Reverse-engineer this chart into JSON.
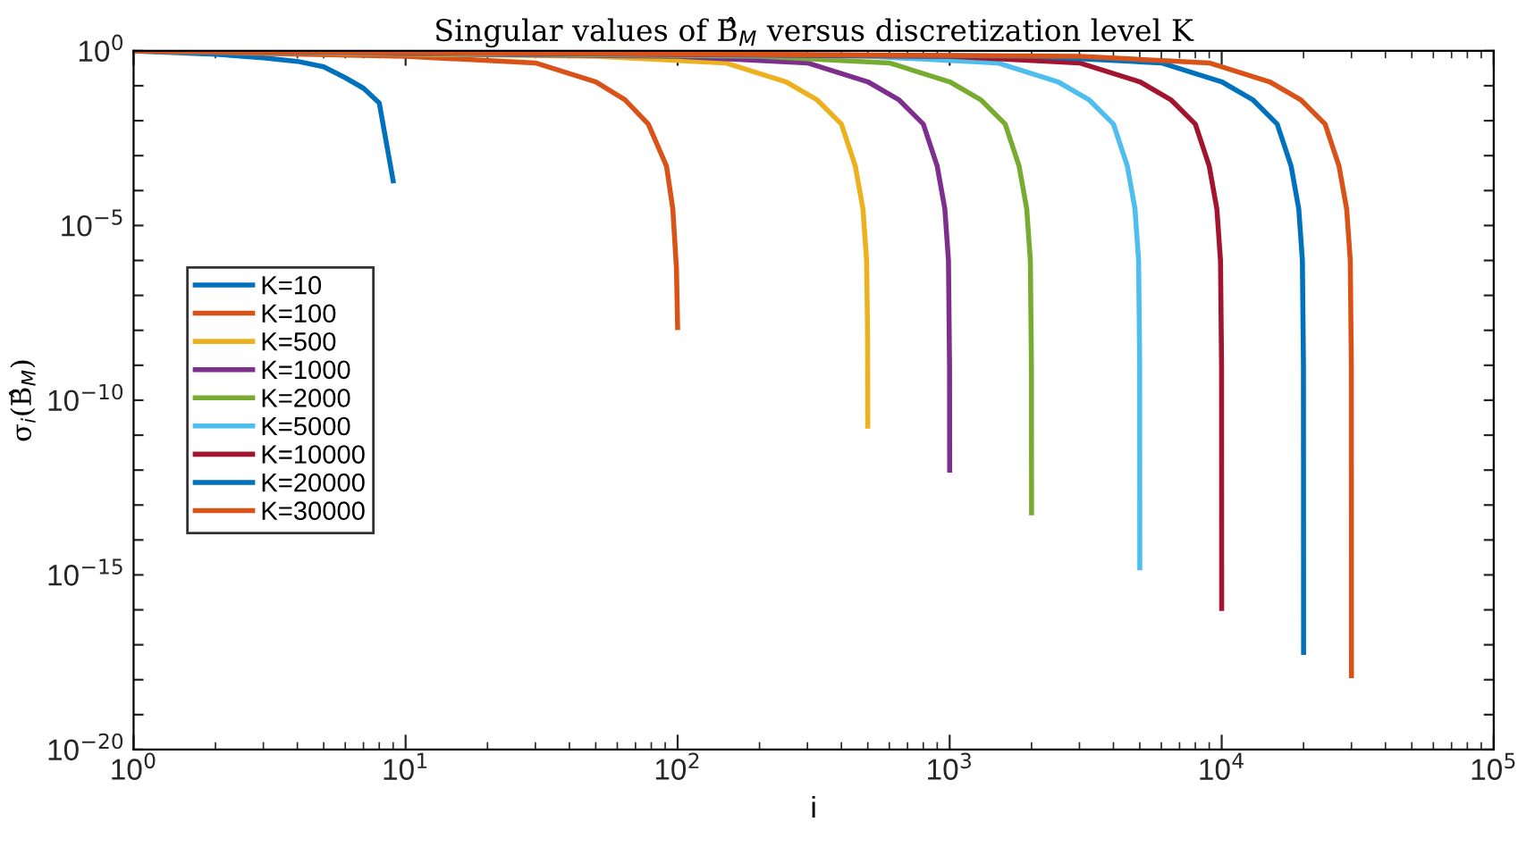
{
  "chart_data": {
    "type": "line",
    "title": "Singular values of B̂$_{M}$ versus discretization level K",
    "xlabel": "i",
    "ylabel": "σ$_{i}$(B̂$_{M}$)",
    "log": "xy",
    "grid": false,
    "legend": "left",
    "marker": "none",
    "line_style": "solid",
    "xlim": [
      1,
      100000
    ],
    "ylim": [
      1e-20,
      1
    ],
    "xticks": [
      {
        "value": 1,
        "label": "10$^{0}$"
      },
      {
        "value": 10,
        "label": "10$^{1}$"
      },
      {
        "value": 100,
        "label": "10$^{2}$"
      },
      {
        "value": 1000,
        "label": "10$^{3}$"
      },
      {
        "value": 10000,
        "label": "10$^{4}$"
      },
      {
        "value": 100000,
        "label": "10$^{5}$"
      }
    ],
    "yticks": [
      {
        "value": 1e-20,
        "label": "10$^{−20}$"
      },
      {
        "value": 1e-19,
        "label": null
      },
      {
        "value": 1e-18,
        "label": null
      },
      {
        "value": 1e-17,
        "label": null
      },
      {
        "value": 1e-16,
        "label": null
      },
      {
        "value": 1e-15,
        "label": "10$^{−15}$"
      },
      {
        "value": 1e-14,
        "label": null
      },
      {
        "value": 1e-13,
        "label": null
      },
      {
        "value": 1e-12,
        "label": null
      },
      {
        "value": 1e-11,
        "label": null
      },
      {
        "value": 1e-10,
        "label": "10$^{−10}$"
      },
      {
        "value": 1e-09,
        "label": null
      },
      {
        "value": 1e-08,
        "label": null
      },
      {
        "value": 1e-07,
        "label": null
      },
      {
        "value": 1e-06,
        "label": null
      },
      {
        "value": 1e-05,
        "label": "10$^{−5}$"
      },
      {
        "value": 0.0001,
        "label": null
      },
      {
        "value": 0.001,
        "label": null
      },
      {
        "value": 0.01,
        "label": null
      },
      {
        "value": 0.1,
        "label": null
      },
      {
        "value": 1,
        "label": "10$^{0}$"
      }
    ],
    "series": [
      {
        "name": "K=10",
        "color": "#0072bd",
        "x": [
          1,
          2,
          3,
          4,
          5,
          6,
          7,
          8,
          9
        ],
        "values": [
          1,
          0.8,
          0.63,
          0.5,
          0.35,
          0.17,
          0.085,
          0.032,
          0.00019
        ]
      },
      {
        "name": "K=100",
        "color": "#d95319",
        "x": [
          1,
          10,
          30,
          50,
          64,
          78,
          91,
          96,
          99,
          100
        ],
        "values": [
          1,
          0.7,
          0.45,
          0.13,
          0.04,
          0.008,
          0.0005,
          3e-05,
          6e-07,
          1.2e-08
        ]
      },
      {
        "name": "K=500",
        "color": "#edb120",
        "x": [
          1,
          50,
          150,
          250,
          325,
          400,
          450,
          480,
          495,
          499,
          500
        ],
        "values": [
          1,
          0.7,
          0.45,
          0.13,
          0.04,
          0.008,
          0.0005,
          3e-05,
          1e-06,
          1e-08,
          1.8e-11
        ]
      },
      {
        "name": "K=1000",
        "color": "#7e2f8e",
        "x": [
          1,
          100,
          300,
          500,
          650,
          800,
          900,
          960,
          990,
          999,
          1000
        ],
        "values": [
          1,
          0.7,
          0.45,
          0.13,
          0.04,
          0.008,
          0.0005,
          3e-05,
          1e-06,
          1e-09,
          1e-12
        ]
      },
      {
        "name": "K=2000",
        "color": "#77ac30",
        "x": [
          1,
          200,
          600,
          1000,
          1300,
          1600,
          1800,
          1920,
          1980,
          1998,
          2000
        ],
        "values": [
          1,
          0.7,
          0.45,
          0.13,
          0.04,
          0.008,
          0.0005,
          3e-05,
          1e-06,
          1e-09,
          6e-14
        ]
      },
      {
        "name": "K=5000",
        "color": "#4dbeee",
        "x": [
          1,
          500,
          1500,
          2500,
          3250,
          4000,
          4500,
          4800,
          4950,
          4995,
          5000
        ],
        "values": [
          1,
          0.7,
          0.45,
          0.13,
          0.04,
          0.008,
          0.0005,
          3e-05,
          1e-06,
          1e-09,
          1.6e-15
        ]
      },
      {
        "name": "K=10000",
        "color": "#a2142f",
        "x": [
          1,
          1000,
          3000,
          5000,
          6500,
          8000,
          9000,
          9600,
          9900,
          9990,
          10000
        ],
        "values": [
          1,
          0.7,
          0.45,
          0.13,
          0.04,
          0.008,
          0.0005,
          3e-05,
          1e-06,
          1e-09,
          1.1e-16
        ]
      },
      {
        "name": "K=20000",
        "color": "#0072bd",
        "x": [
          1,
          2000,
          6000,
          10000,
          13000,
          16000,
          18000,
          19200,
          19800,
          19980,
          20000
        ],
        "values": [
          1,
          0.7,
          0.45,
          0.13,
          0.04,
          0.008,
          0.0005,
          3e-05,
          1e-06,
          1e-09,
          6e-18
        ]
      },
      {
        "name": "K=30000",
        "color": "#d95319",
        "x": [
          1,
          3000,
          9000,
          15000,
          19500,
          24000,
          27000,
          28800,
          29700,
          29970,
          30000
        ],
        "values": [
          1,
          0.7,
          0.45,
          0.13,
          0.04,
          0.008,
          0.0005,
          3e-05,
          1e-06,
          1e-09,
          1.3e-18
        ]
      }
    ]
  }
}
